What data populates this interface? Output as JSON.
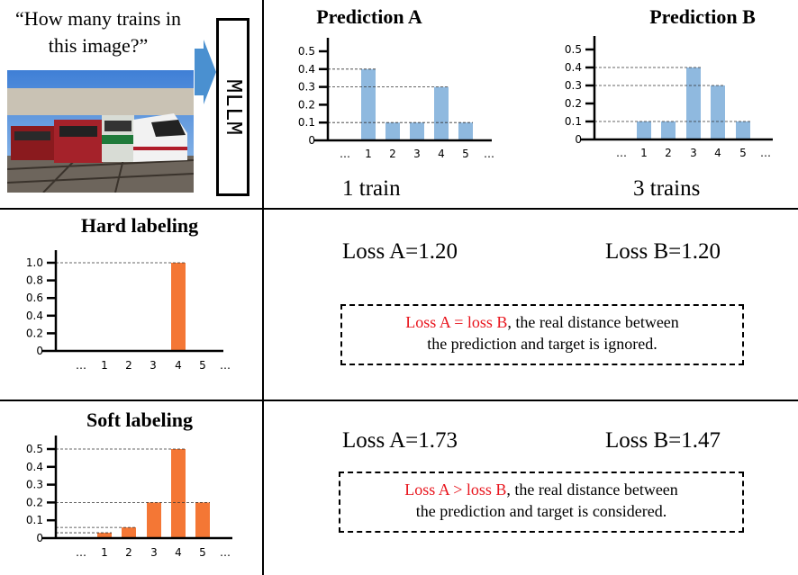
{
  "input": {
    "question": "“How many trains in this image?”",
    "image": "photo of four trains at a rail yard"
  },
  "model": {
    "label": "MLLM"
  },
  "colors": {
    "prediction_bar": "#8fb9df",
    "label_bar": "#f47735",
    "highlight_text": "#e8141c",
    "arrow": "#4a90d0"
  },
  "chart_data": [
    {
      "id": "prediction_a",
      "type": "bar",
      "title": "Prediction A",
      "caption": "1 train",
      "categories": [
        "1",
        "2",
        "3",
        "4",
        "5"
      ],
      "values": [
        0.4,
        0.1,
        0.1,
        0.3,
        0.1
      ],
      "yticks": [
        "0",
        "0.1",
        "0.2",
        "0.3",
        "0.4",
        "0.5"
      ],
      "ylim": [
        0,
        0.5
      ],
      "ellipsis": "…",
      "guides": [
        0.4,
        0.3,
        0.1
      ]
    },
    {
      "id": "prediction_b",
      "type": "bar",
      "title": "Prediction B",
      "caption": "3 trains",
      "categories": [
        "1",
        "2",
        "3",
        "4",
        "5"
      ],
      "values": [
        0.1,
        0.1,
        0.4,
        0.3,
        0.1
      ],
      "yticks": [
        "0",
        "0.1",
        "0.2",
        "0.3",
        "0.4",
        "0.5"
      ],
      "ylim": [
        0,
        0.5
      ],
      "ellipsis": "…",
      "guides": [
        0.4,
        0.3,
        0.1
      ]
    },
    {
      "id": "hard_labeling",
      "type": "bar",
      "title": "Hard labeling",
      "categories": [
        "1",
        "2",
        "3",
        "4",
        "5"
      ],
      "values": [
        0,
        0,
        0,
        1.0,
        0
      ],
      "yticks": [
        "0",
        "0.2",
        "0.4",
        "0.6",
        "0.8",
        "1.0"
      ],
      "ylim": [
        0,
        1.0
      ],
      "ellipsis": "…",
      "guides": [
        1.0
      ]
    },
    {
      "id": "soft_labeling",
      "type": "bar",
      "title": "Soft labeling",
      "categories": [
        "1",
        "2",
        "3",
        "4",
        "5"
      ],
      "values": [
        0.03,
        0.06,
        0.2,
        0.5,
        0.2
      ],
      "yticks": [
        "0",
        "0.1",
        "0.2",
        "0.3",
        "0.4",
        "0.5"
      ],
      "ylim": [
        0,
        0.5
      ],
      "ellipsis": "…",
      "guides": [
        0.5,
        0.2,
        0.06,
        0.03
      ]
    }
  ],
  "hard": {
    "loss_a": "Loss A=1.20",
    "loss_b": "Loss B=1.20",
    "note_highlight": "Loss A = loss B",
    "note_rest": ", the real distance between",
    "note_line2": "the prediction and target is ignored."
  },
  "soft": {
    "loss_a": "Loss A=1.73",
    "loss_b": "Loss B=1.47",
    "note_highlight": "Loss A > loss B",
    "note_rest": ", the real distance between",
    "note_line2": "the prediction and target is considered."
  }
}
